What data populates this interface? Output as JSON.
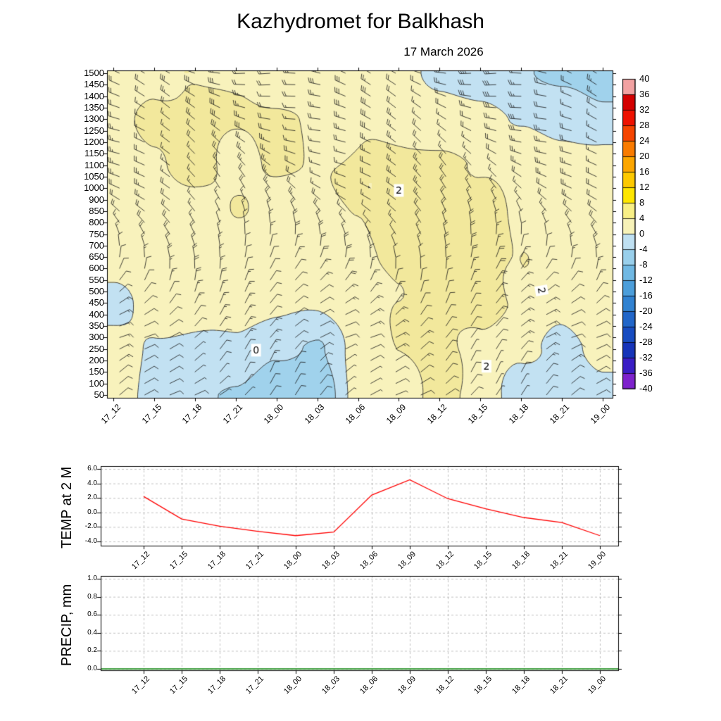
{
  "title": "Kazhydromet  for Balkhash",
  "subtitle": "17 March 2026",
  "time_labels": [
    "17_12",
    "17_15",
    "17_18",
    "17_21",
    "18_00",
    "18_03",
    "18_06",
    "18_09",
    "18_12",
    "18_15",
    "18_18",
    "18_21",
    "19_00"
  ],
  "chart_data": [
    {
      "type": "heatmap",
      "name": "Time-height cross-section of temperature with wind barbs",
      "x_labels": [
        "17_12",
        "17_15",
        "17_18",
        "17_21",
        "18_00",
        "18_03",
        "18_06",
        "18_09",
        "18_12",
        "18_15",
        "18_18",
        "18_21",
        "19_00"
      ],
      "y_labels": [
        "1500",
        "1450",
        "1400",
        "1350",
        "1300",
        "1250",
        "1200",
        "1150",
        "1100",
        "1050",
        "1000",
        "900",
        "850",
        "800",
        "750",
        "700",
        "650",
        "600",
        "550",
        "500",
        "450",
        "400",
        "350",
        "300",
        "250",
        "200",
        "150",
        "100",
        "50"
      ],
      "unit": "degC",
      "contour_line_levels": [
        -2,
        0,
        2
      ],
      "fill_bands": [
        {
          "min": 4,
          "color": "#eee188"
        },
        {
          "min": 2,
          "color": "#f2e89c"
        },
        {
          "min": 0,
          "color": "#f8f2bc"
        },
        {
          "min": -2,
          "color": "#c2e1f2"
        },
        {
          "min": -4,
          "color": "#a0d2ec"
        },
        {
          "min": -999,
          "color": "#7cbce2"
        }
      ],
      "temperature_grid": {
        "row_level_indices": [
          0,
          4,
          8,
          12,
          16,
          20,
          24,
          28
        ],
        "note": "rows bottom(50) to top(1500); cols follow x_labels",
        "values": [
          [
            1.2,
            -0.8,
            -1.6,
            -2.2,
            -3.4,
            -3.8,
            0.6,
            1.6,
            2.4,
            1.4,
            -1.2,
            -1.6,
            -0.6
          ],
          [
            1.0,
            -0.2,
            -0.4,
            -0.3,
            -1.6,
            -2.4,
            0.9,
            1.9,
            2.4,
            1.6,
            0.4,
            -0.6,
            0.8
          ],
          [
            -0.6,
            0.6,
            1.0,
            0.8,
            0.4,
            0.3,
            1.2,
            2.1,
            2.5,
            2.4,
            1.8,
            0.6,
            1.6
          ],
          [
            0.4,
            1.0,
            1.3,
            1.5,
            1.2,
            1.1,
            1.7,
            2.3,
            2.6,
            2.5,
            1.9,
            1.3,
            1.5
          ],
          [
            0.9,
            1.3,
            1.6,
            1.9,
            1.6,
            1.5,
            2.0,
            2.4,
            2.6,
            2.4,
            1.9,
            1.5,
            1.2
          ],
          [
            1.1,
            1.9,
            2.3,
            1.8,
            2.1,
            1.9,
            2.1,
            2.3,
            2.3,
            2.1,
            1.7,
            1.2,
            0.8
          ],
          [
            1.4,
            2.2,
            2.4,
            2.0,
            2.2,
            1.9,
            1.7,
            1.4,
            1.1,
            0.6,
            0.0,
            -0.8,
            -1.4
          ],
          [
            1.1,
            1.7,
            1.9,
            1.8,
            1.8,
            1.5,
            1.0,
            0.4,
            -0.6,
            -1.3,
            -1.9,
            -2.4,
            -2.8
          ]
        ]
      },
      "contour_labels": [
        {
          "text": "0",
          "t": 3.5,
          "lvl": 3.9,
          "rot": 0
        },
        {
          "text": "2",
          "t": 7.0,
          "lvl": 17.8,
          "rot": 0
        },
        {
          "text": "2",
          "t": 10.5,
          "lvl": 9.1,
          "rot": 80
        },
        {
          "text": "2",
          "t": 9.15,
          "lvl": 2.5,
          "rot": 0
        }
      ],
      "wind_barbs": {
        "columns": 20,
        "dir_by_level": [
          50,
          46,
          42,
          44,
          48,
          54,
          50,
          46,
          40,
          34,
          26,
          16,
          6,
          356,
          346,
          336,
          326,
          318,
          312,
          308,
          304,
          300,
          297,
          294,
          292,
          290,
          288,
          286,
          284
        ],
        "speed_by_level": [
          8,
          8,
          9,
          10,
          10,
          11,
          12,
          12,
          13,
          13,
          14,
          14,
          15,
          15,
          16,
          16,
          17,
          18,
          18,
          19,
          20,
          20,
          21,
          22,
          22,
          23,
          24,
          25,
          26
        ],
        "dir_time_amp": 18,
        "speed_time_amp": 0.3
      },
      "colorbar": {
        "tick_labels": [
          "40",
          "36",
          "32",
          "28",
          "24",
          "20",
          "16",
          "12",
          "8",
          "4",
          "0",
          "-4",
          "-8",
          "-12",
          "-16",
          "-20",
          "-24",
          "-28",
          "-32",
          "-36",
          "-40"
        ],
        "band_colors": [
          "#f2a2a2",
          "#d40000",
          "#ee1100",
          "#f54400",
          "#f97b00",
          "#fca600",
          "#fdc900",
          "#fee600",
          "#f8ef86",
          "#f7f2b8",
          "#bfe0f2",
          "#99cfeb",
          "#70b8e3",
          "#4c9eda",
          "#3182d1",
          "#2166c9",
          "#174cc1",
          "#1634b9",
          "#3a1ec5",
          "#7e22cc"
        ]
      }
    },
    {
      "type": "line",
      "name": "TEMP at 2 M",
      "x_labels": [
        "17_12",
        "17_15",
        "17_18",
        "17_21",
        "18_00",
        "18_03",
        "18_06",
        "18_09",
        "18_12",
        "18_15",
        "18_18",
        "18_21",
        "19_00"
      ],
      "y_ticks": [
        6,
        4,
        2,
        0,
        -2,
        -4
      ],
      "y_tick_labels": [
        "6.0",
        "4.0",
        "2.0",
        "0.0",
        "-2.0",
        "-4.0"
      ],
      "ylim": [
        -4.7,
        6.4
      ],
      "values": [
        2.2,
        -0.9,
        -1.9,
        -2.6,
        -3.2,
        -2.7,
        2.4,
        4.5,
        1.9,
        0.5,
        -0.7,
        -1.4,
        -3.2
      ],
      "line_color": "#ff0000",
      "grid": "dashed"
    },
    {
      "type": "line",
      "name": "PRECIP, mm",
      "x_labels": [
        "17_12",
        "17_15",
        "17_18",
        "17_21",
        "18_00",
        "18_03",
        "18_06",
        "18_09",
        "18_12",
        "18_15",
        "18_18",
        "18_21",
        "19_00"
      ],
      "y_ticks": [
        1.0,
        0.8,
        0.6,
        0.4,
        0.2,
        0.0
      ],
      "y_tick_labels": [
        "1.0",
        "0.8",
        "0.6",
        "0.4",
        "0.2",
        "0.0"
      ],
      "ylim": [
        0,
        1.03
      ],
      "values": [
        0,
        0,
        0,
        0,
        0,
        0,
        0,
        0,
        0,
        0,
        0,
        0,
        0
      ],
      "line_color": "#008000",
      "grid": "dashed"
    }
  ]
}
